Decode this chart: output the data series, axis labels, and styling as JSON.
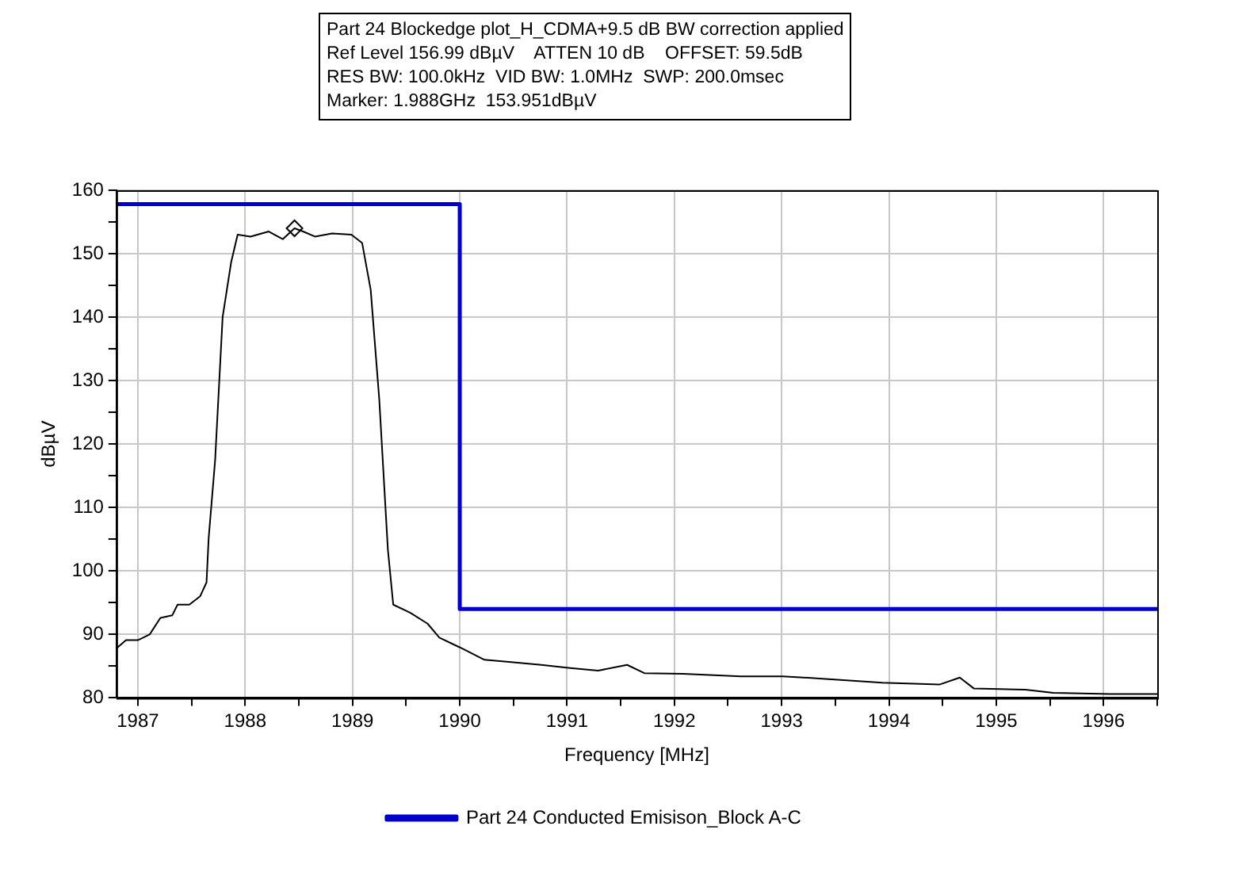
{
  "chart_data": {
    "type": "line",
    "xlabel": "Frequency [MHz]",
    "ylabel": "dBµV",
    "annotations": [
      "Part 24 Blockedge plot_H_CDMA+9.5 dB BW correction applied",
      "Ref Level 156.99 dBµV    ATTEN 10 dB    OFFSET: 59.5dB",
      "RES BW: 100.0kHz  VID BW: 1.0MHz  SWP: 200.0msec",
      "Marker: 1.988GHz  153.951dBµV"
    ],
    "xlim": [
      1986.8,
      1996.5
    ],
    "ylim": [
      80,
      160
    ],
    "xticks": [
      {
        "value": 1987,
        "label": "1987"
      },
      {
        "value": 1987.5,
        "label": null
      },
      {
        "value": 1988,
        "label": "1988"
      },
      {
        "value": 1988.5,
        "label": null
      },
      {
        "value": 1989,
        "label": "1989"
      },
      {
        "value": 1989.5,
        "label": null
      },
      {
        "value": 1990,
        "label": "1990"
      },
      {
        "value": 1990.5,
        "label": null
      },
      {
        "value": 1991,
        "label": "1991"
      },
      {
        "value": 1991.5,
        "label": null
      },
      {
        "value": 1992,
        "label": "1992"
      },
      {
        "value": 1992.5,
        "label": null
      },
      {
        "value": 1993,
        "label": "1993"
      },
      {
        "value": 1993.5,
        "label": null
      },
      {
        "value": 1994,
        "label": "1994"
      },
      {
        "value": 1994.5,
        "label": null
      },
      {
        "value": 1995,
        "label": "1995"
      },
      {
        "value": 1995.5,
        "label": null
      },
      {
        "value": 1996,
        "label": "1996"
      },
      {
        "value": 1996.5,
        "label": null
      }
    ],
    "yticks": [
      80,
      {
        "value": 85,
        "label": null
      },
      90,
      {
        "value": 95,
        "label": null
      },
      100,
      {
        "value": 105,
        "label": null
      },
      110,
      {
        "value": 115,
        "label": null
      },
      120,
      {
        "value": 125,
        "label": null
      },
      130,
      {
        "value": 135,
        "label": null
      },
      140,
      {
        "value": 145,
        "label": null
      },
      150,
      {
        "value": 155,
        "label": null
      },
      160
    ],
    "grid": true,
    "legend": "bottom",
    "series": [
      {
        "color": "#000000",
        "x": [
          1986.8,
          1986.89,
          1987.0,
          1987.11,
          1987.21,
          1987.32,
          1987.37,
          1987.48,
          1987.58,
          1987.64,
          1987.66,
          1987.72,
          1987.79,
          1987.87,
          1987.93,
          1988.05,
          1988.22,
          1988.35,
          1988.46,
          1988.54,
          1988.65,
          1988.81,
          1988.99,
          1989.09,
          1989.17,
          1989.25,
          1989.33,
          1989.38,
          1989.54,
          1989.7,
          1989.81,
          1989.97,
          1990.02,
          1990.23,
          1990.5,
          1990.76,
          1991.03,
          1991.29,
          1991.56,
          1991.72,
          1992.08,
          1992.62,
          1993.01,
          1993.41,
          1993.94,
          1994.47,
          1994.66,
          1994.79,
          1995.27,
          1995.53,
          1996.06,
          1996.5
        ],
        "values": [
          87.8,
          89.1,
          89.1,
          90,
          92.6,
          93,
          94.7,
          94.7,
          96,
          98.2,
          105.2,
          117.4,
          140,
          148.7,
          153,
          152.7,
          153.5,
          152.3,
          154,
          153.5,
          152.7,
          153.2,
          153,
          151.7,
          144.3,
          127,
          103.4,
          94.7,
          93.4,
          91.7,
          89.5,
          88.2,
          87.8,
          86,
          85.6,
          85.2,
          84.7,
          84.3,
          85.2,
          83.9,
          83.8,
          83.4,
          83.4,
          83,
          82.4,
          82.1,
          83.2,
          81.5,
          81.3,
          80.8,
          80.6,
          80.6
        ]
      },
      {
        "type": "step",
        "name": "Part 24 Conducted Emisison_Block A-C",
        "color": "#0000cc",
        "x": [
          1986.8,
          1990,
          1996.5
        ],
        "values": [
          157.8,
          94,
          94
        ]
      },
      {
        "type": "scatter",
        "marker": "diamond",
        "color": "#000000",
        "x": [
          1988.46
        ],
        "values": [
          154
        ]
      }
    ]
  }
}
